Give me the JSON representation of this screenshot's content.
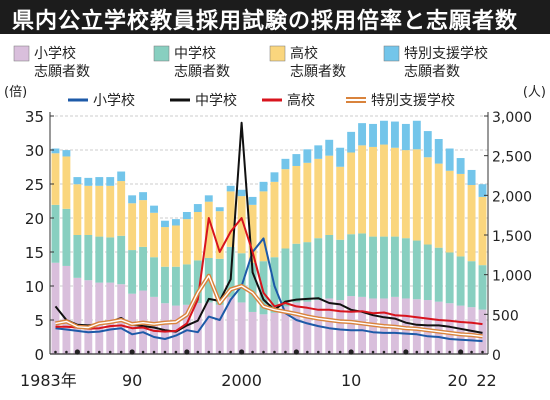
{
  "title": "県内公立学校教員採用試験の採用倍率と志願者数",
  "chart_data": {
    "type": "bar",
    "title": "県内公立学校教員採用試験の採用倍率と志願者数",
    "left_axis": {
      "unit": "(倍)",
      "ylim": [
        0,
        35
      ],
      "ticks": [
        "0",
        "5",
        "10",
        "15",
        "20",
        "25",
        "30",
        "35"
      ]
    },
    "right_axis": {
      "unit": "(人)",
      "ylim": [
        0,
        3000
      ],
      "ticks": [
        "0",
        "500",
        "1,000",
        "1,500",
        "2,000",
        "2,500",
        "3,000"
      ]
    },
    "x_tick_labels": [
      {
        "year": 1983,
        "label": "1983年"
      },
      {
        "year": 1990,
        "label": "90"
      },
      {
        "year": 2000,
        "label": "2000"
      },
      {
        "year": 2010,
        "label": "10"
      },
      {
        "year": 2020,
        "label": "20"
      },
      {
        "year": 2022,
        "label": "22"
      }
    ],
    "years": [
      1983,
      1984,
      1985,
      1986,
      1987,
      1988,
      1989,
      1990,
      1991,
      1992,
      1993,
      1994,
      1995,
      1996,
      1997,
      1998,
      1999,
      2000,
      2001,
      2002,
      2003,
      2004,
      2005,
      2006,
      2007,
      2008,
      2009,
      2010,
      2011,
      2012,
      2013,
      2014,
      2015,
      2016,
      2017,
      2018,
      2019,
      2020,
      2021,
      2022
    ],
    "bar_legend": [
      {
        "name": "小学校志願者数",
        "line1": "小学校",
        "line2": "志願者数",
        "color": "#d9bfdc"
      },
      {
        "name": "中学校志願者数",
        "line1": "中学校",
        "line2": "志願者数",
        "color": "#88cfc0"
      },
      {
        "name": "高校志願者数",
        "line1": "高校",
        "line2": "志願者数",
        "color": "#fad67e"
      },
      {
        "name": "特別支援学校志願者数",
        "line1": "特別支援学校",
        "line2": "志願者数",
        "color": "#73c5ea"
      }
    ],
    "bar_series": [
      {
        "name": "小学校志願者数",
        "color": "#d9bfdc",
        "values": [
          1150,
          1110,
          960,
          930,
          900,
          900,
          880,
          760,
          800,
          720,
          640,
          610,
          620,
          640,
          650,
          620,
          720,
          650,
          530,
          500,
          520,
          600,
          650,
          660,
          680,
          700,
          680,
          730,
          720,
          700,
          700,
          720,
          700,
          690,
          680,
          660,
          640,
          610,
          590,
          560
        ]
      },
      {
        "name": "中学校志願者数",
        "color": "#88cfc0",
        "values": [
          730,
          720,
          540,
          570,
          580,
          570,
          610,
          550,
          550,
          500,
          460,
          490,
          510,
          540,
          560,
          580,
          630,
          620,
          620,
          670,
          700,
          730,
          740,
          750,
          780,
          800,
          760,
          780,
          800,
          780,
          780,
          760,
          760,
          740,
          700,
          680,
          640,
          620,
          580,
          560
        ]
      },
      {
        "name": "高校志願者数",
        "color": "#fad67e",
        "values": [
          650,
          660,
          640,
          620,
          640,
          650,
          690,
          590,
          590,
          560,
          500,
          520,
          570,
          610,
          710,
          600,
          700,
          720,
          730,
          880,
          950,
          1000,
          980,
          1000,
          1000,
          1000,
          920,
          1030,
          1110,
          1130,
          1160,
          1120,
          1110,
          1150,
          1100,
          1060,
          1030,
          1040,
          960,
          860
        ]
      },
      {
        "name": "特別支援学校志願者数",
        "color": "#73c5ea",
        "values": [
          60,
          80,
          90,
          100,
          110,
          110,
          120,
          100,
          100,
          90,
          80,
          80,
          90,
          100,
          80,
          50,
          70,
          80,
          100,
          120,
          120,
          130,
          150,
          170,
          170,
          200,
          240,
          260,
          280,
          290,
          300,
          330,
          330,
          360,
          330,
          310,
          280,
          200,
          190,
          160
        ]
      }
    ],
    "line_legend": [
      {
        "name": "小学校",
        "color": "#1d5aa8"
      },
      {
        "name": "中学校",
        "color": "#111111"
      },
      {
        "name": "高校",
        "color": "#d8141d"
      },
      {
        "name": "特別支援学校",
        "color": "#d9833c"
      }
    ],
    "line_series": [
      {
        "name": "小学校",
        "color": "#1d5aa8",
        "values": [
          3.8,
          3.6,
          3.4,
          3.2,
          3.3,
          3.6,
          3.8,
          2.9,
          3.2,
          2.5,
          2.2,
          2.7,
          3.5,
          3.2,
          5.5,
          5,
          8,
          10,
          15,
          17,
          10,
          6,
          5,
          4.5,
          4.1,
          3.8,
          3.6,
          3.5,
          3.5,
          3.2,
          3.1,
          3.1,
          3,
          2.9,
          2.6,
          2.5,
          2.2,
          2.1,
          2,
          1.9
        ]
      },
      {
        "name": "中学校",
        "color": "#111111",
        "values": [
          7,
          5,
          4.3,
          4.2,
          4.4,
          4.7,
          5.3,
          4.3,
          4.1,
          3.9,
          3.5,
          3.3,
          4.2,
          4.9,
          8.1,
          7.8,
          11,
          34,
          12,
          8,
          6.5,
          7.7,
          8,
          8.1,
          8.2,
          7.5,
          7.3,
          6.5,
          6.2,
          5.7,
          5.4,
          5.2,
          4.6,
          4.3,
          4.2,
          4.2,
          4,
          3.7,
          3.4,
          3.1
        ]
      },
      {
        "name": "高校",
        "color": "#d8141d",
        "values": [
          4,
          4,
          3.9,
          3.7,
          3.8,
          4.1,
          4.2,
          3.8,
          3.9,
          3.4,
          3.3,
          3.4,
          4.5,
          8,
          20,
          15,
          18,
          20,
          15,
          9,
          7,
          7.5,
          7,
          6.8,
          6.5,
          6.5,
          6.3,
          6.2,
          6.3,
          6,
          6.1,
          5.7,
          5.6,
          5.4,
          5.2,
          5,
          4.9,
          4.7,
          4.6,
          4.4
        ]
      },
      {
        "name": "特別支援学校",
        "color": "#d9833c",
        "values": [
          4.5,
          4.8,
          4,
          3.9,
          4.5,
          4.7,
          5,
          4.4,
          4.6,
          4.4,
          4.6,
          4.7,
          5.8,
          9,
          11.5,
          7.5,
          9.5,
          10,
          9,
          7,
          6.5,
          6.2,
          5.9,
          5.5,
          5.2,
          5,
          4.8,
          4.7,
          4.5,
          4.3,
          4.1,
          4,
          3.8,
          3.7,
          3.5,
          3.3,
          3.1,
          2.9,
          2.8,
          2.6
        ]
      }
    ]
  }
}
